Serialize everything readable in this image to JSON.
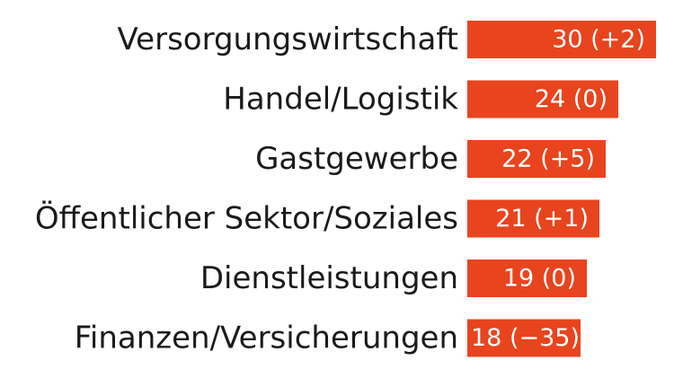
{
  "chart_data": {
    "type": "bar",
    "orientation": "horizontal",
    "categories": [
      "Versorgungswirtschaft",
      "Handel/Logistik",
      "Gastgewerbe",
      "Öffentlicher Sektor/Soziales",
      "Dienstleistungen",
      "Finanzen/Versicherungen"
    ],
    "values": [
      30,
      24,
      22,
      21,
      19,
      18
    ],
    "value_labels": [
      "30 (+2)",
      "24 (0)",
      "22 (+5)",
      "21 (+1)",
      "19 (0)",
      "18 (−35)"
    ],
    "bar_color": "#e8441e",
    "grid": false,
    "legend": "none"
  }
}
